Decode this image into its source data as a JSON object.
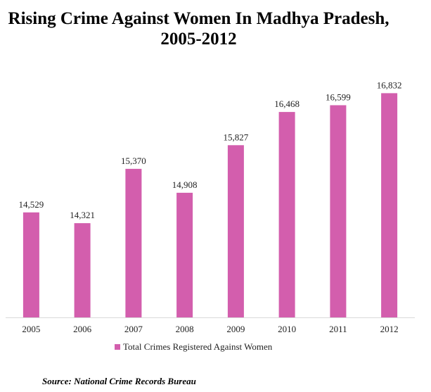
{
  "chart_data": {
    "type": "bar",
    "title": "Rising Crime Against Women In Madhya Pradesh, 2005-2012",
    "xlabel": "",
    "ylabel": "",
    "categories": [
      "2005",
      "2006",
      "2007",
      "2008",
      "2009",
      "2010",
      "2011",
      "2012"
    ],
    "series": [
      {
        "name": "Total Crimes Registered Against Women",
        "values": [
          14529,
          14321,
          15370,
          14908,
          15827,
          16468,
          16599,
          16832
        ],
        "labels": [
          "14,529",
          "14,321",
          "15,370",
          "14,908",
          "15,827",
          "16,468",
          "16,599",
          "16,832"
        ],
        "color": "#d35ead"
      }
    ],
    "ylim": [
      12500,
      17000
    ],
    "grid": false,
    "y_axis_visible": false,
    "legend_position": "bottom",
    "source": "Source: National Crime Records Bureau"
  }
}
